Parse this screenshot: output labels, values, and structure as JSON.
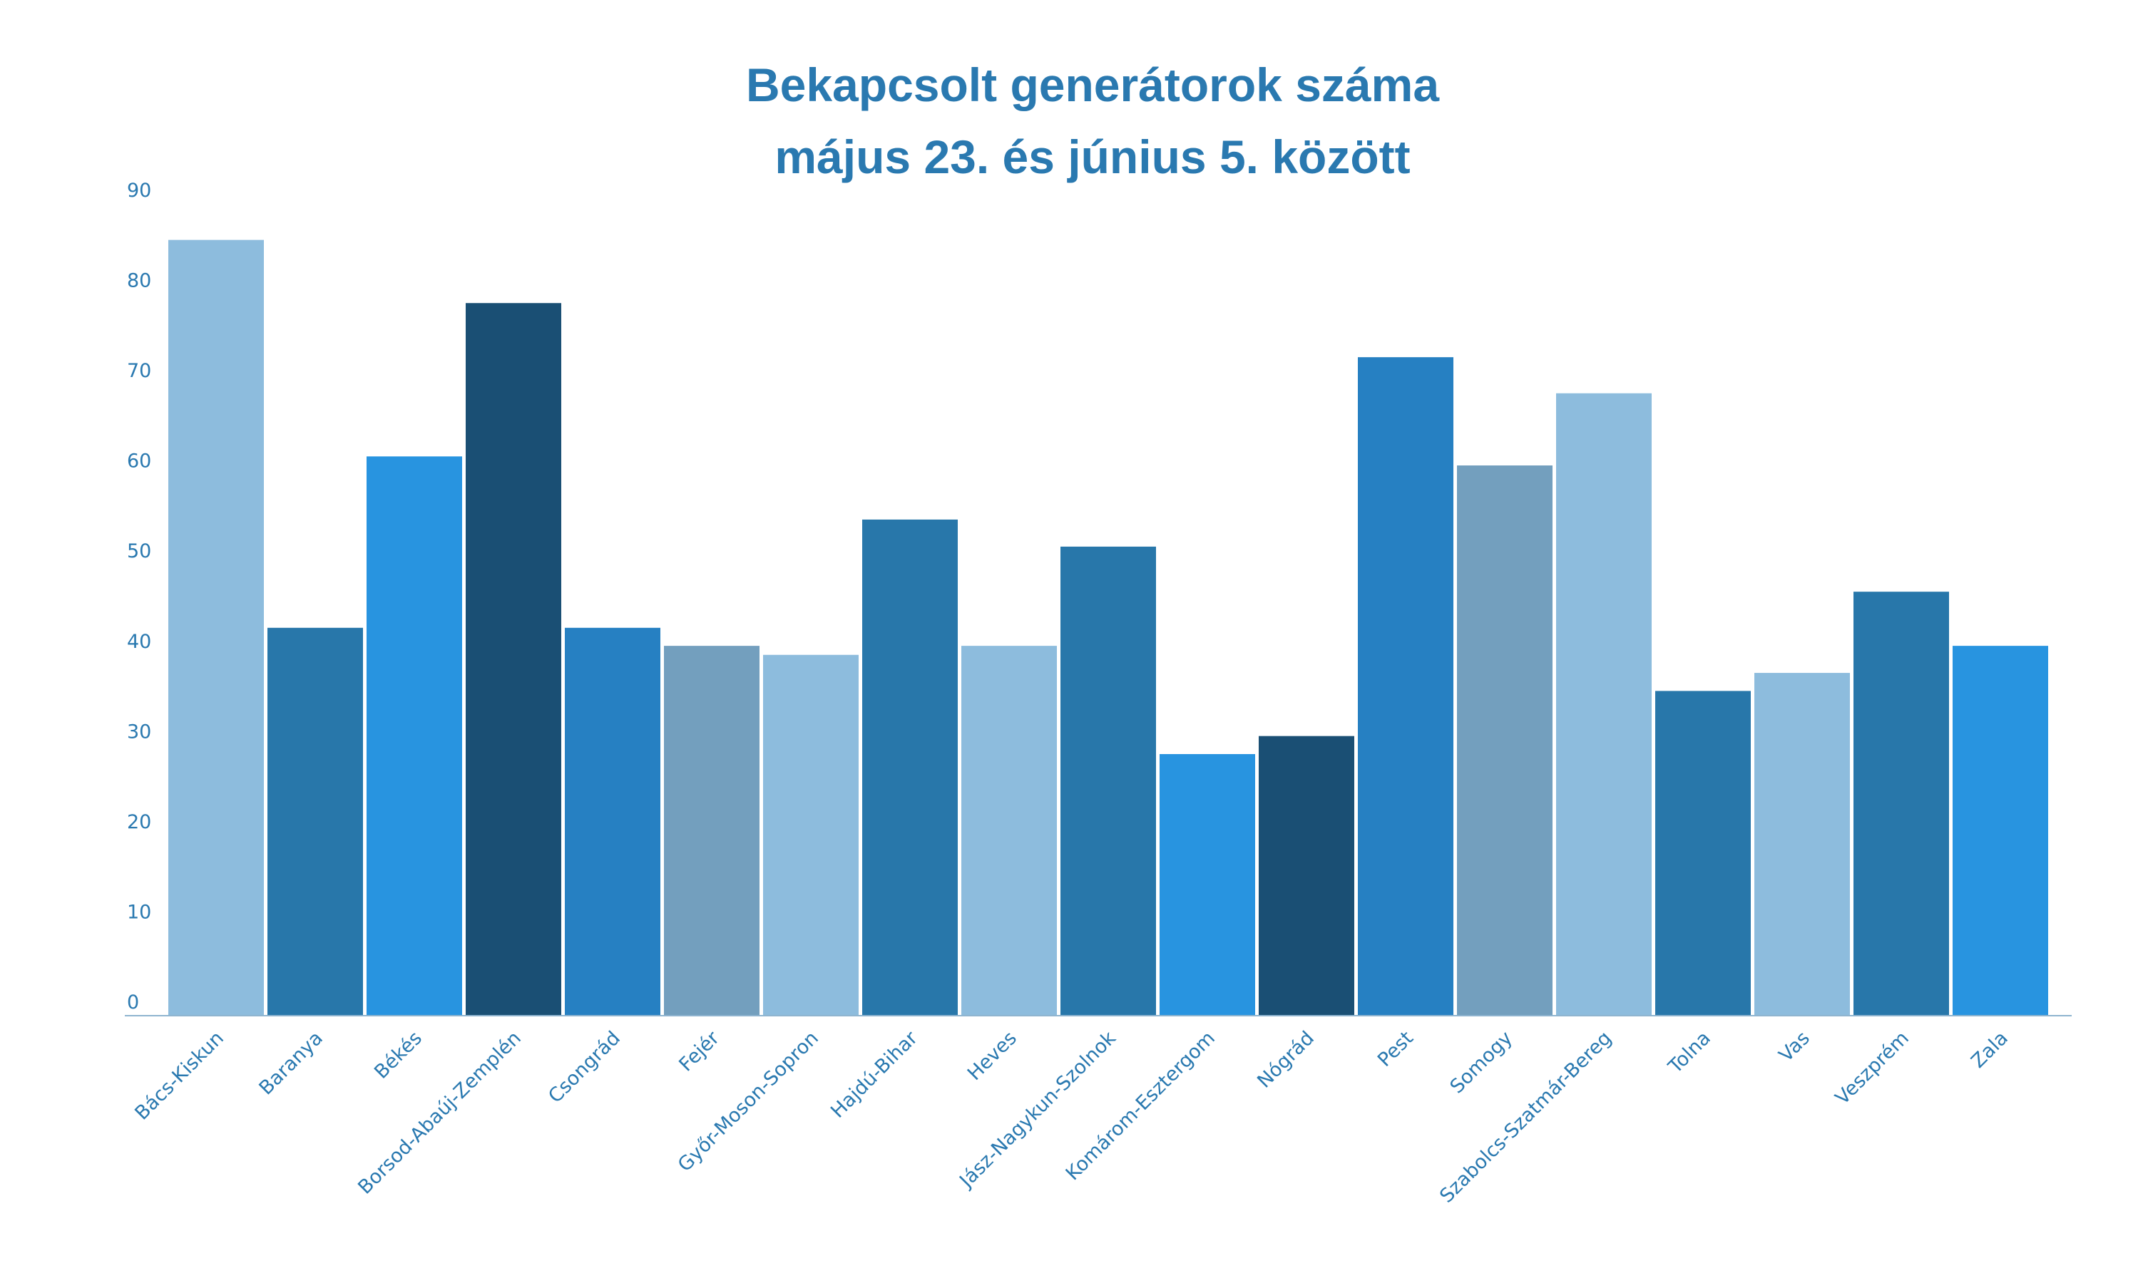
{
  "chart_data": {
    "type": "bar",
    "title": "Bekapcsolt generátorok száma",
    "subtitle": "május 23. és június 5. között",
    "xlabel": "",
    "ylabel": "",
    "ylim": [
      0,
      90
    ],
    "yticks": [
      0,
      10,
      20,
      30,
      40,
      50,
      60,
      70,
      80,
      90
    ],
    "grid": false,
    "legend": "none",
    "categories": [
      "Bács-Kiskun",
      "Baranya",
      "Békés",
      "Borsod-Abaúj-Zemplén",
      "Csongrád",
      "Fejér",
      "Győr-Moson-Sopron",
      "Hajdú-Bihar",
      "Heves",
      "Jász-Nagykun-Szolnok",
      "Komárom-Esztergom",
      "Nógrád",
      "Pest",
      "Somogy",
      "Szabolcs-Szatmár-Bereg",
      "Tolna",
      "Vas",
      "Veszprém",
      "Zala"
    ],
    "values": [
      86,
      43,
      62,
      79,
      43,
      41,
      40,
      55,
      41,
      52,
      29,
      31,
      73,
      61,
      69,
      36,
      38,
      47,
      41
    ],
    "bar_colors": [
      "#8dbcdd",
      "#2877aa",
      "#2894e0",
      "#1a4f74",
      "#2680c2",
      "#739fbe",
      "#8dbcdd",
      "#2877aa",
      "#8dbcdd",
      "#2877aa",
      "#2894e0",
      "#1a4f74",
      "#2680c2",
      "#739fbe",
      "#8dbcdd",
      "#2877aa",
      "#8dbcdd",
      "#2877aa",
      "#2894e0"
    ],
    "text_color": "#2a79b0"
  }
}
